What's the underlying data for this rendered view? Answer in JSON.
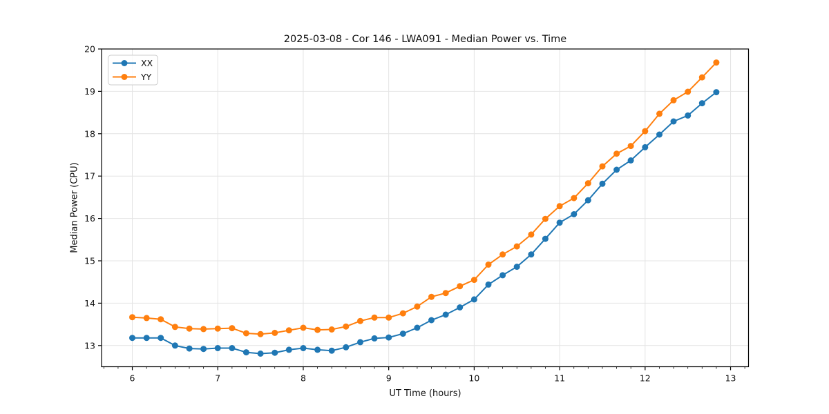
{
  "chart_data": {
    "type": "line",
    "title": "2025-03-08 - Cor 146 - LWA091 - Median Power vs. Time",
    "xlabel": "UT Time (hours)",
    "ylabel": "Median Power (CPU)",
    "xlim": [
      5.64,
      13.21
    ],
    "ylim": [
      12.5,
      20
    ],
    "x_ticks": [
      6,
      7,
      8,
      9,
      10,
      11,
      12,
      13
    ],
    "y_ticks": [
      13,
      14,
      15,
      16,
      17,
      18,
      19,
      20
    ],
    "x_minor_step": 0.166667,
    "grid": true,
    "legend_position": "upper left",
    "legend_entries": [
      "XX",
      "YY"
    ],
    "colors": {
      "grid": "#e4e4e4",
      "spine": "#000000",
      "text": "#111111",
      "legend_border": "#cccccc"
    },
    "x": [
      6.0,
      6.167,
      6.333,
      6.5,
      6.667,
      6.833,
      7.0,
      7.167,
      7.333,
      7.5,
      7.667,
      7.833,
      8.0,
      8.167,
      8.333,
      8.5,
      8.667,
      8.833,
      9.0,
      9.167,
      9.333,
      9.5,
      9.667,
      9.833,
      10.0,
      10.167,
      10.333,
      10.5,
      10.667,
      10.833,
      11.0,
      11.167,
      11.333,
      11.5,
      11.667,
      11.833,
      12.0,
      12.167,
      12.333,
      12.5,
      12.667,
      12.833
    ],
    "series": [
      {
        "name": "XX",
        "color": "#1f77b4",
        "values": [
          13.18,
          13.18,
          13.18,
          13.0,
          12.93,
          12.92,
          12.94,
          12.94,
          12.84,
          12.81,
          12.83,
          12.9,
          12.94,
          12.9,
          12.88,
          12.96,
          13.08,
          13.17,
          13.19,
          13.28,
          13.42,
          13.6,
          13.73,
          13.9,
          14.09,
          14.44,
          14.66,
          14.86,
          15.15,
          15.52,
          15.9,
          16.1,
          16.43,
          16.82,
          17.15,
          17.37,
          17.68,
          17.98,
          18.29,
          18.43,
          18.72,
          18.98
        ]
      },
      {
        "name": "YY",
        "color": "#ff7f0e",
        "values": [
          13.67,
          13.65,
          13.62,
          13.44,
          13.4,
          13.39,
          13.4,
          13.41,
          13.29,
          13.27,
          13.3,
          13.36,
          13.42,
          13.37,
          13.38,
          13.45,
          13.58,
          13.66,
          13.66,
          13.76,
          13.92,
          14.15,
          14.24,
          14.4,
          14.55,
          14.91,
          15.15,
          15.34,
          15.62,
          15.99,
          16.29,
          16.48,
          16.83,
          17.23,
          17.53,
          17.71,
          18.06,
          18.47,
          18.79,
          18.99,
          19.33,
          19.68
        ]
      }
    ]
  }
}
